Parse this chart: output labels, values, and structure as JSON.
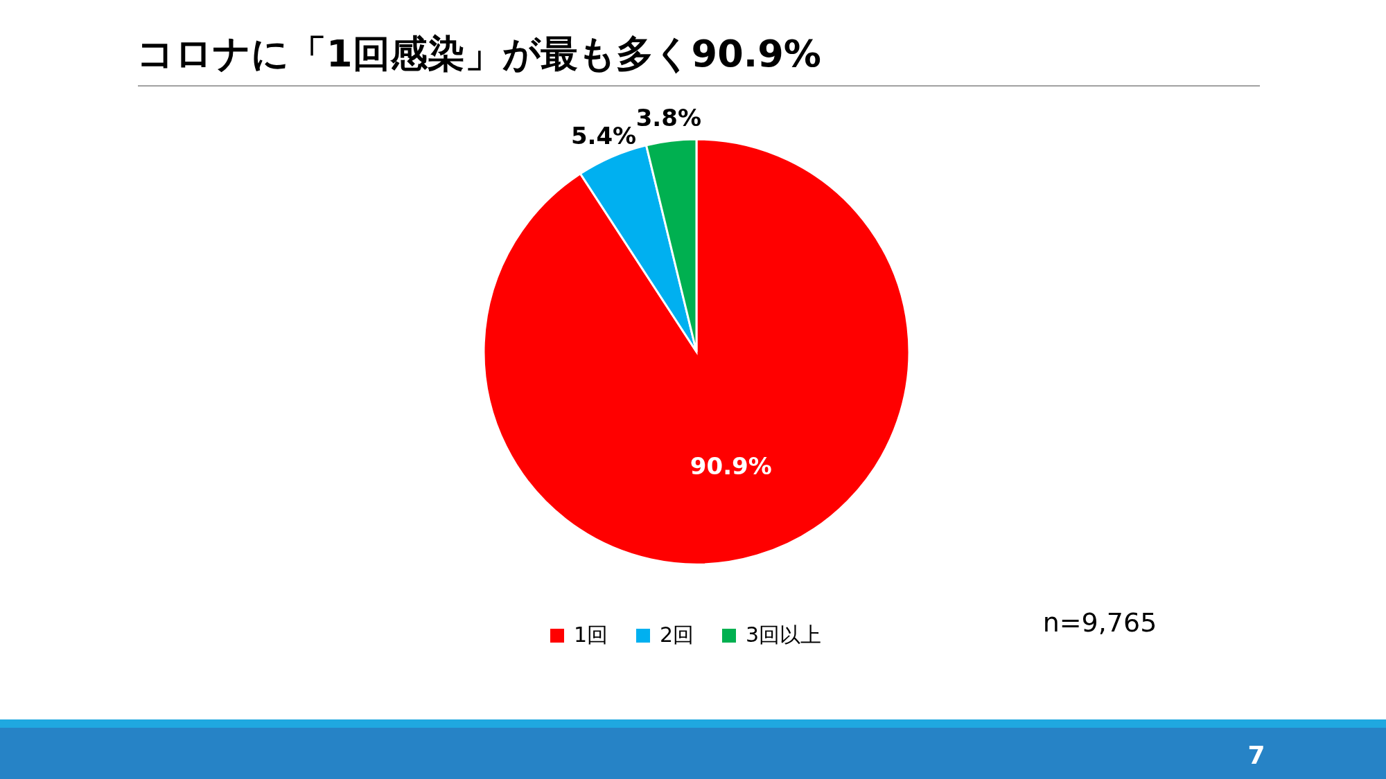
{
  "chart_data": {
    "type": "pie",
    "title": "コロナに「1回感染」が最も多く90.9%",
    "categories": [
      "1回",
      "2回",
      "3回以上"
    ],
    "values": [
      90.9,
      5.4,
      3.8
    ],
    "colors": [
      "#ff0000",
      "#00b0f0",
      "#00b050"
    ],
    "value_labels": [
      "90.9%",
      "5.4%",
      "3.8%"
    ],
    "legend": "bottom",
    "annotations": [
      "n=9,765",
      "7"
    ]
  }
}
